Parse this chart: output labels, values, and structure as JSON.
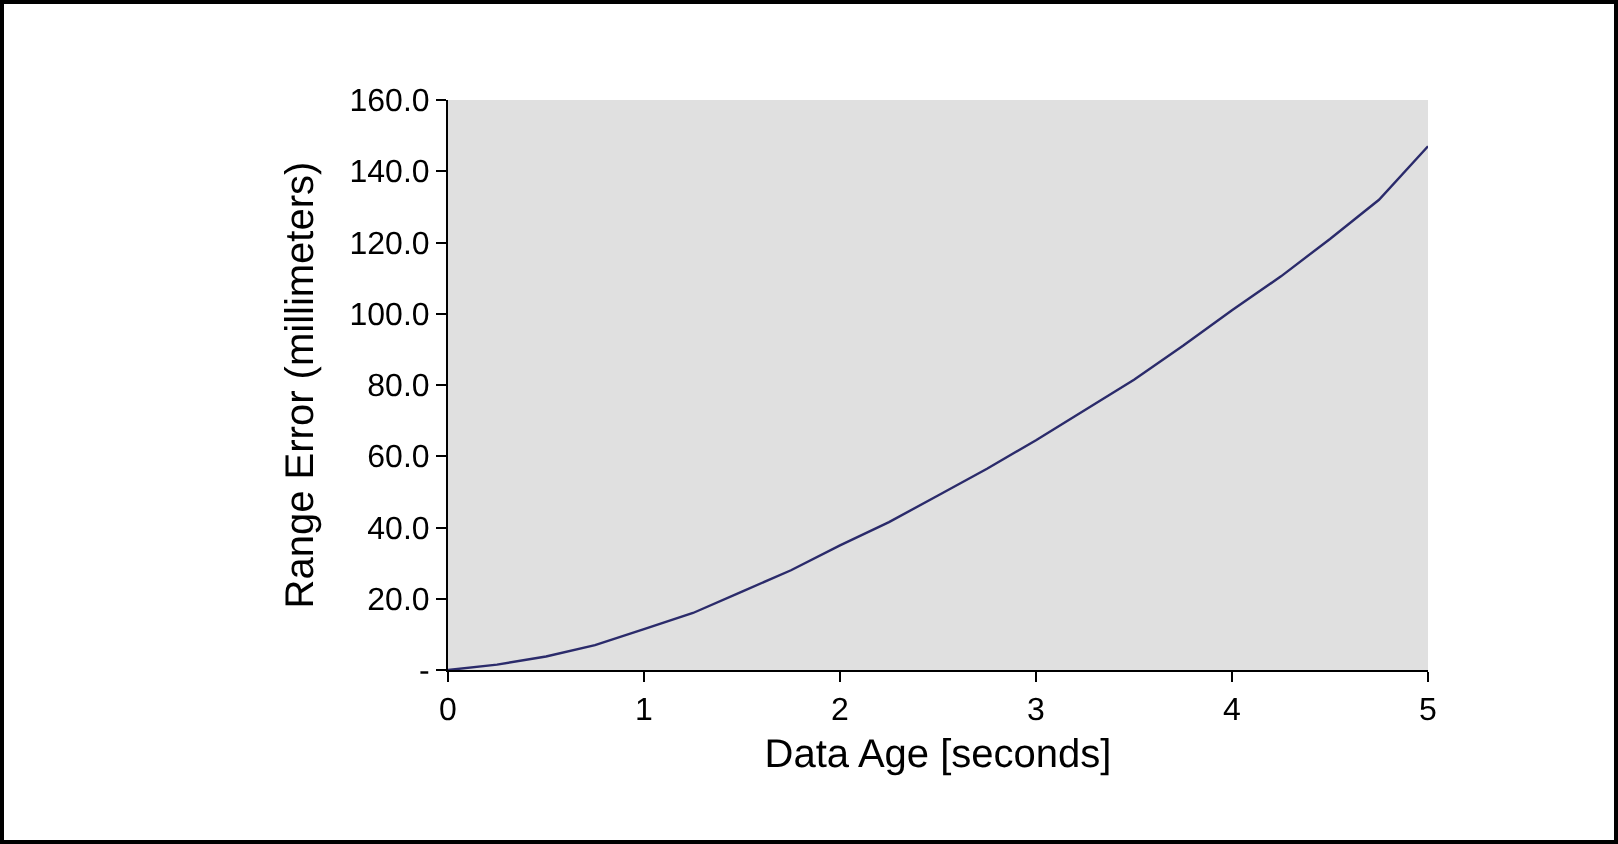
{
  "chart_data": {
    "type": "line",
    "xlabel": "Data Age [seconds]",
    "ylabel": "Range Error (millimeters)",
    "x": [
      0,
      0.25,
      0.5,
      0.75,
      1,
      1.25,
      1.5,
      1.75,
      2,
      2.25,
      2.5,
      2.75,
      3,
      3.25,
      3.5,
      3.75,
      4,
      4.25,
      4.5,
      4.75,
      5
    ],
    "series": [
      {
        "color": "#2b2b6b",
        "values": [
          0,
          1.5,
          3.8,
          7,
          11.5,
          16,
          22,
          28,
          35,
          41.5,
          49,
          56.5,
          64.5,
          73,
          81.5,
          91,
          101,
          110.5,
          121,
          132,
          147
        ]
      }
    ],
    "xlim": [
      0,
      5
    ],
    "xticks": [
      0,
      1,
      2,
      3,
      4,
      5
    ],
    "ylim": [
      0,
      160
    ],
    "yticks": [
      {
        "value": 0,
        "label": "-"
      },
      {
        "value": 20,
        "label": "20.0"
      },
      {
        "value": 40,
        "label": "40.0"
      },
      {
        "value": 60,
        "label": "60.0"
      },
      {
        "value": 80,
        "label": "80.0"
      },
      {
        "value": 100,
        "label": "100.0"
      },
      {
        "value": 120,
        "label": "120.0"
      },
      {
        "value": 140,
        "label": "140.0"
      },
      {
        "value": 160,
        "label": "160.0"
      }
    ],
    "grid": false,
    "marker": "none",
    "line_style": "solid"
  }
}
